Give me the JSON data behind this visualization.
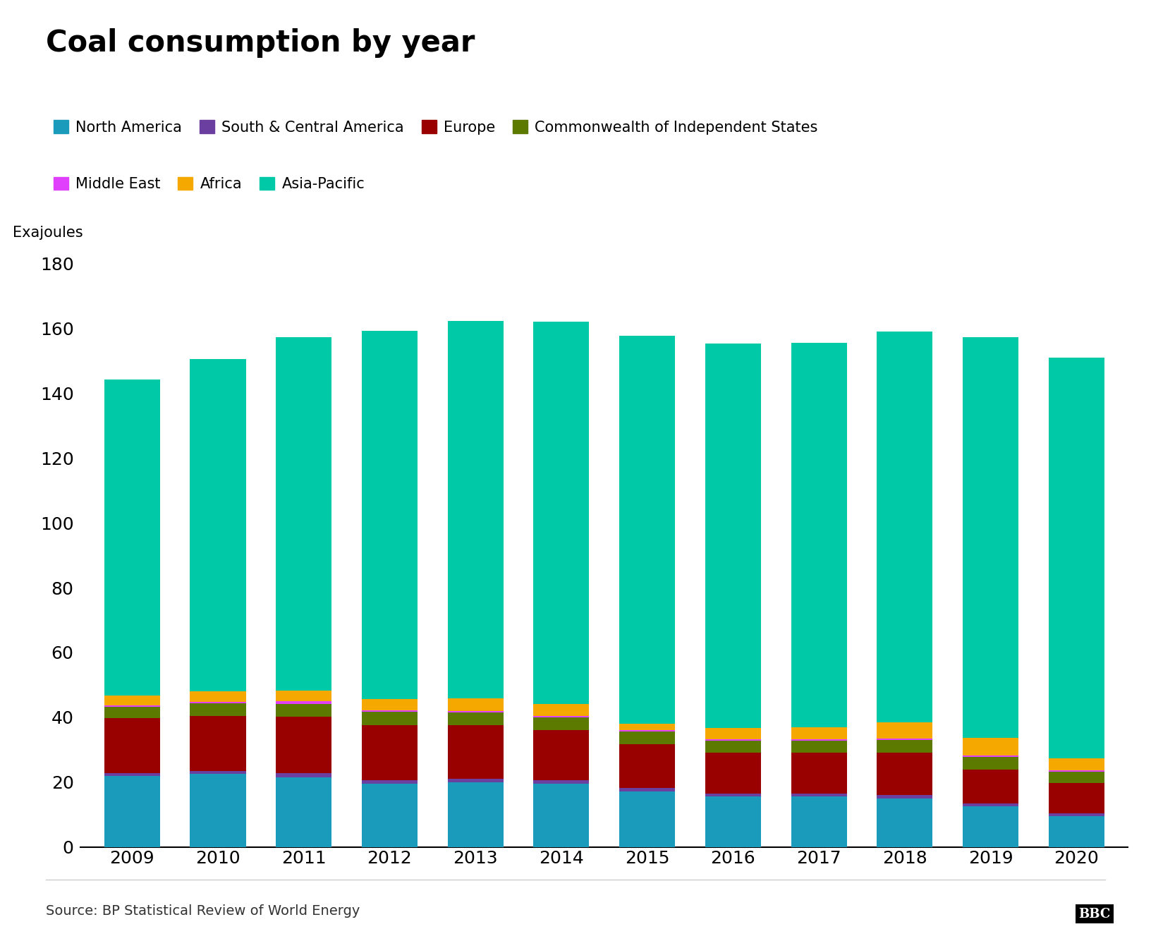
{
  "title": "Coal consumption by year",
  "ylabel": "Exajoules",
  "source": "Source: BP Statistical Review of World Energy",
  "years": [
    2009,
    2010,
    2011,
    2012,
    2013,
    2014,
    2015,
    2016,
    2017,
    2018,
    2019,
    2020
  ],
  "series": [
    {
      "name": "North America",
      "color": "#1a9bbc",
      "values": [
        22.0,
        22.5,
        21.5,
        19.5,
        20.0,
        19.5,
        17.0,
        15.5,
        15.5,
        15.0,
        12.5,
        9.5
      ]
    },
    {
      "name": "South & Central America",
      "color": "#6b3fa0",
      "values": [
        0.8,
        1.0,
        1.2,
        1.0,
        1.0,
        1.0,
        1.2,
        1.0,
        1.0,
        1.0,
        0.8,
        0.8
      ]
    },
    {
      "name": "Europe",
      "color": "#990000",
      "values": [
        17.0,
        17.0,
        17.5,
        17.0,
        16.5,
        15.5,
        13.5,
        12.5,
        12.5,
        13.0,
        10.5,
        9.5
      ]
    },
    {
      "name": "Commonwealth of Independent States",
      "color": "#5c7a00",
      "values": [
        3.5,
        3.8,
        4.0,
        4.2,
        4.0,
        4.0,
        4.0,
        3.8,
        3.8,
        4.0,
        4.0,
        3.5
      ]
    },
    {
      "name": "Middle East",
      "color": "#e040fb",
      "values": [
        0.3,
        0.5,
        0.8,
        0.5,
        0.5,
        0.5,
        0.4,
        0.4,
        0.4,
        0.4,
        0.4,
        0.3
      ]
    },
    {
      "name": "Africa",
      "color": "#f5a800",
      "values": [
        3.2,
        3.2,
        3.2,
        3.5,
        3.8,
        3.5,
        2.0,
        3.5,
        3.8,
        5.0,
        5.5,
        3.8
      ]
    },
    {
      "name": "Asia-Pacific",
      "color": "#00c9a7",
      "values": [
        97.5,
        102.5,
        109.0,
        113.5,
        116.5,
        118.0,
        119.5,
        118.5,
        118.5,
        120.5,
        123.5,
        123.5
      ]
    }
  ],
  "ylim": [
    0,
    180
  ],
  "yticks": [
    0,
    20,
    40,
    60,
    80,
    100,
    120,
    140,
    160,
    180
  ],
  "background_color": "#ffffff",
  "bar_width": 0.65
}
